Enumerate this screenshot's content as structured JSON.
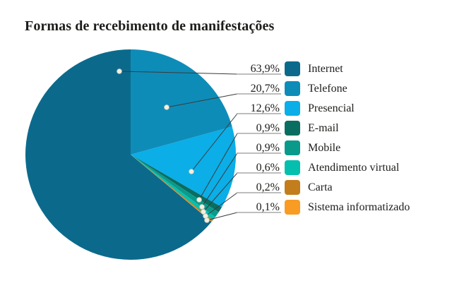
{
  "title": "Formas de recebimento de manifestações",
  "chart_data": {
    "type": "pie",
    "title": "Formas de recebimento de manifestações",
    "unit": "%",
    "decimal_separator": ",",
    "legend_position": "right",
    "labels_style": "callout lines with dots, percent labels underlined",
    "slices": [
      {
        "label": "Internet",
        "value": 63.9,
        "pct_label": "63,9%",
        "color": "#0b6a8c"
      },
      {
        "label": "Telefone",
        "value": 20.7,
        "pct_label": "20,7%",
        "color": "#0e8cb8"
      },
      {
        "label": "Presencial",
        "value": 12.6,
        "pct_label": "12,6%",
        "color": "#0baee6"
      },
      {
        "label": "E-mail",
        "value": 0.9,
        "pct_label": "0,9%",
        "color": "#0a6d61"
      },
      {
        "label": "Mobile",
        "value": 0.9,
        "pct_label": "0,9%",
        "color": "#0a9a8c"
      },
      {
        "label": "Atendimento virtual",
        "value": 0.6,
        "pct_label": "0,6%",
        "color": "#04bfae"
      },
      {
        "label": "Carta",
        "value": 0.2,
        "pct_label": "0,2%",
        "color": "#c37d1d"
      },
      {
        "label": "Sistema informatizado",
        "value": 0.1,
        "pct_label": "0,1%",
        "color": "#f89c23"
      }
    ],
    "draw_order": [
      1,
      2,
      3,
      4,
      5,
      6,
      7,
      0
    ],
    "start_angle_deg": 0,
    "direction": "clockwise",
    "colors": {
      "text": "#1d1d1b",
      "leader_line": "#3a3a3a",
      "underline": "#a8a8a8",
      "dot_fill": "#f4efe3",
      "dot_stroke": "#cfc9b8",
      "background": "#ffffff"
    }
  }
}
